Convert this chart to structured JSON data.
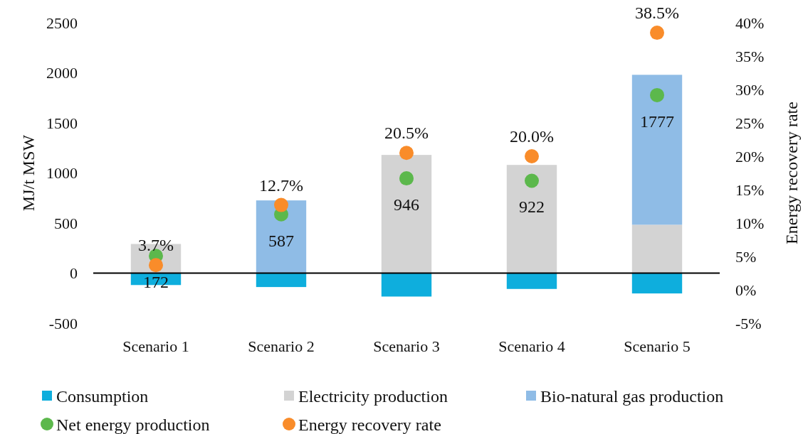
{
  "chart_data": {
    "type": "bar",
    "stacked": true,
    "categories": [
      "Scenario 1",
      "Scenario 2",
      "Scenario 3",
      "Scenario 4",
      "Scenario 5"
    ],
    "ylabel": "MJ/t MSW",
    "y2label": "Energy recovery rate",
    "ylim": [
      -500,
      2500
    ],
    "yticks": [
      -500,
      0,
      500,
      1000,
      1500,
      2000,
      2500
    ],
    "y2lim": [
      -5,
      40
    ],
    "y2ticks": [
      {
        "value": -5,
        "label": "-5%"
      },
      {
        "value": 0,
        "label": "0%"
      },
      {
        "value": 5,
        "label": "5%"
      },
      {
        "value": 10,
        "label": "10%"
      },
      {
        "value": 15,
        "label": "15%"
      },
      {
        "value": 20,
        "label": "20%"
      },
      {
        "value": 25,
        "label": "25%"
      },
      {
        "value": 30,
        "label": "30%"
      },
      {
        "value": 35,
        "label": "35%"
      },
      {
        "value": 40,
        "label": "40%"
      }
    ],
    "legend": "bottom",
    "marker": "circle",
    "series": [
      {
        "name": "Consumption",
        "color": "#0eaedd",
        "values": [
          -119,
          -139,
          -234,
          -158,
          -203
        ]
      },
      {
        "name": "Electricity production",
        "color": "#d3d3d3",
        "values": [
          291,
          null,
          1180,
          1080,
          483
        ]
      },
      {
        "name": "Bio-natural gas production",
        "color": "#8fbce6",
        "values": [
          null,
          726,
          null,
          null,
          1497
        ]
      },
      {
        "name": "Net energy production",
        "type": "scatter",
        "color": "#5cb84c",
        "values": [
          172,
          587,
          946,
          922,
          1777
        ],
        "value_labels": [
          "172",
          "587",
          "946",
          "922",
          "1777"
        ]
      },
      {
        "name": "Energy recovery rate",
        "type": "scatter",
        "axis": "y2",
        "color": "#f98c2a",
        "values": [
          3.7,
          12.7,
          20.5,
          20.0,
          38.5
        ],
        "value_labels": [
          "3.7%",
          "12.7%",
          "20.5%",
          "20.0%",
          "38.5%"
        ]
      }
    ]
  }
}
